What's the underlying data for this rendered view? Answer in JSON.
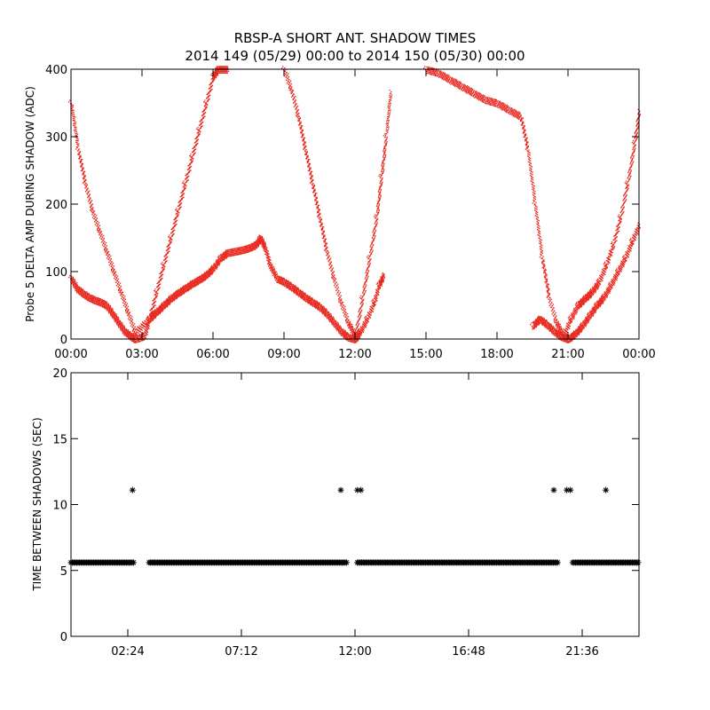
{
  "title": "RBSP-A SHORT ANT. SHADOW TIMES",
  "subtitle": "2014 149 (05/29) 00:00 to 2014 150 (05/30) 00:00",
  "colors": {
    "series": "#e8281e",
    "markers": "#000000",
    "axes": "#000000"
  },
  "chart_data": [
    {
      "type": "scatter",
      "ylabel": "Probe 5 DELTA AMP DURING SHADOW (ADC)",
      "xlabel": "",
      "xlim": [
        0,
        24
      ],
      "ylim": [
        0,
        400
      ],
      "x_tick_values": [
        0,
        3,
        6,
        9,
        12,
        15,
        18,
        21,
        24
      ],
      "x_tick_labels": [
        "00:00",
        "03:00",
        "06:00",
        "09:00",
        "12:00",
        "15:00",
        "18:00",
        "21:00",
        "00:00"
      ],
      "y_ticks": [
        0,
        100,
        200,
        300,
        400
      ],
      "series": [
        {
          "style": "dots",
          "x": [
            0.0,
            0.25,
            0.5,
            0.75,
            1.0,
            1.25,
            1.5,
            1.75,
            2.0,
            2.25,
            2.5,
            2.7,
            3.1,
            3.3,
            3.6,
            3.9,
            4.2,
            4.5,
            4.8,
            5.1,
            5.4,
            5.7,
            6.0,
            6.3,
            6.6,
            6.9,
            7.2,
            7.5,
            7.8,
            8.0,
            8.2,
            8.4,
            8.7,
            9.0,
            9.3,
            9.6,
            9.9,
            10.2,
            10.5,
            10.8,
            11.1,
            11.4,
            11.7,
            12.0,
            12.2,
            12.5,
            12.8,
            13.0,
            13.2
          ],
          "y": [
            90,
            75,
            68,
            62,
            58,
            55,
            50,
            38,
            25,
            12,
            5,
            0,
            5,
            30,
            40,
            50,
            60,
            68,
            75,
            82,
            88,
            95,
            105,
            120,
            128,
            130,
            132,
            135,
            140,
            150,
            135,
            110,
            90,
            85,
            78,
            70,
            62,
            55,
            48,
            38,
            25,
            12,
            3,
            0,
            10,
            30,
            55,
            80,
            95
          ]
        },
        {
          "style": "dots",
          "x": [
            0.0,
            0.3,
            0.6,
            0.9,
            1.2,
            1.5,
            1.8,
            2.1,
            2.4,
            2.7,
            3.3,
            3.6,
            3.9,
            4.2,
            4.5,
            4.8,
            5.1,
            5.4,
            5.7,
            6.0,
            6.2,
            6.4,
            6.6,
            9.0,
            9.3,
            9.6,
            9.9,
            10.2,
            10.5,
            10.8,
            11.1,
            11.4,
            11.7,
            12.0,
            12.3,
            12.6,
            12.9,
            13.1,
            13.3,
            13.5
          ],
          "y": [
            350,
            280,
            230,
            190,
            160,
            130,
            100,
            70,
            40,
            10,
            30,
            70,
            110,
            150,
            190,
            230,
            270,
            310,
            350,
            390,
            400,
            400,
            400,
            400,
            370,
            330,
            280,
            230,
            180,
            130,
            90,
            55,
            25,
            5,
            60,
            120,
            180,
            240,
            300,
            370
          ]
        },
        {
          "style": "dots",
          "x": [
            15.0,
            15.5,
            16.0,
            16.5,
            17.0,
            17.5,
            18.0,
            18.5,
            19.0,
            19.3,
            19.6,
            19.9,
            20.2,
            20.5,
            20.8,
            21.1,
            21.4,
            21.7,
            22.0,
            22.3,
            22.6,
            22.9,
            23.2,
            23.5,
            23.8,
            24.0
          ],
          "y": [
            400,
            395,
            385,
            375,
            365,
            355,
            350,
            340,
            330,
            280,
            200,
            120,
            60,
            25,
            5,
            30,
            50,
            60,
            70,
            85,
            110,
            140,
            180,
            230,
            290,
            340
          ]
        },
        {
          "style": "dots",
          "x": [
            19.5,
            19.8,
            20.1,
            20.4,
            20.7,
            21.0,
            21.3,
            21.6,
            21.9,
            22.2,
            22.5,
            22.8,
            23.1,
            23.4,
            23.7,
            24.0
          ],
          "y": [
            20,
            30,
            22,
            12,
            4,
            0,
            8,
            20,
            35,
            50,
            62,
            80,
            100,
            120,
            145,
            170
          ]
        }
      ]
    },
    {
      "type": "scatter",
      "ylabel": "TIME BETWEEN SHADOWS (SEC)",
      "xlabel": "",
      "xlim": [
        0,
        24
      ],
      "ylim": [
        0,
        20
      ],
      "x_tick_values": [
        2.4,
        7.2,
        12.0,
        16.8,
        21.6
      ],
      "x_tick_labels": [
        "02:24",
        "07:12",
        "12:00",
        "16:48",
        "21:36"
      ],
      "y_ticks": [
        0,
        5,
        10,
        15,
        20
      ],
      "series": [
        {
          "style": "asterisk",
          "segments": [
            [
              0.0,
              2.7
            ],
            [
              3.3,
              11.7
            ],
            [
              12.1,
              20.6
            ],
            [
              21.2,
              24.0
            ]
          ],
          "baseline": 5.6,
          "x": [
            2.6,
            11.4,
            12.1,
            12.25,
            20.4,
            20.95,
            21.1,
            22.6
          ],
          "y": [
            11.1,
            11.1,
            11.1,
            11.1,
            11.1,
            11.1,
            11.1,
            11.1
          ]
        }
      ]
    }
  ]
}
